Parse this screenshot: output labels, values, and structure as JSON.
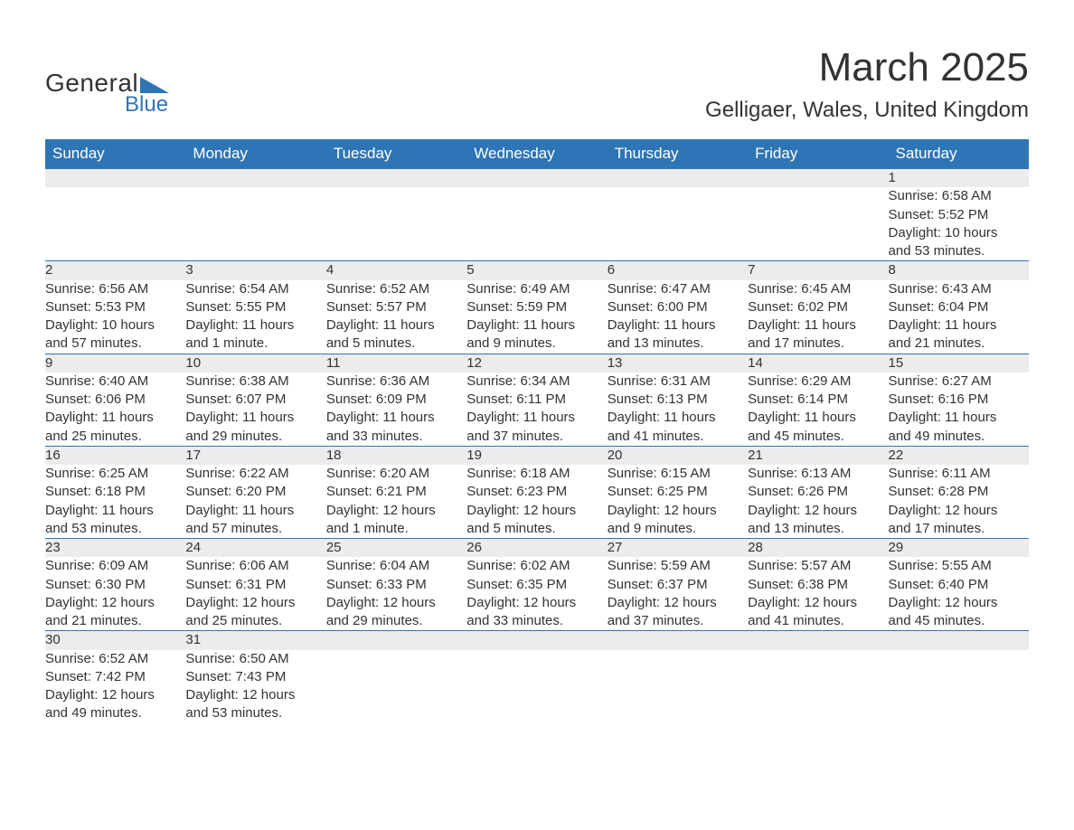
{
  "logo": {
    "brand_top": "General",
    "brand_bottom": "Blue",
    "triangle_color": "#2e75b6"
  },
  "title": {
    "month": "March 2025",
    "location": "Gelligaer, Wales, United Kingdom"
  },
  "colors": {
    "header_bg": "#2e75b6",
    "header_text": "#ffffff",
    "daynum_bg": "#ececec",
    "row_border": "#2e75b6",
    "text": "#333333",
    "background": "#ffffff"
  },
  "typography": {
    "month_fontsize": 44,
    "location_fontsize": 24,
    "header_fontsize": 17,
    "daynum_fontsize": 17,
    "body_fontsize": 15
  },
  "weekdays": [
    "Sunday",
    "Monday",
    "Tuesday",
    "Wednesday",
    "Thursday",
    "Friday",
    "Saturday"
  ],
  "weeks": [
    [
      null,
      null,
      null,
      null,
      null,
      null,
      {
        "day": "1",
        "sunrise": "Sunrise: 6:58 AM",
        "sunset": "Sunset: 5:52 PM",
        "daylight1": "Daylight: 10 hours",
        "daylight2": "and 53 minutes."
      }
    ],
    [
      {
        "day": "2",
        "sunrise": "Sunrise: 6:56 AM",
        "sunset": "Sunset: 5:53 PM",
        "daylight1": "Daylight: 10 hours",
        "daylight2": "and 57 minutes."
      },
      {
        "day": "3",
        "sunrise": "Sunrise: 6:54 AM",
        "sunset": "Sunset: 5:55 PM",
        "daylight1": "Daylight: 11 hours",
        "daylight2": "and 1 minute."
      },
      {
        "day": "4",
        "sunrise": "Sunrise: 6:52 AM",
        "sunset": "Sunset: 5:57 PM",
        "daylight1": "Daylight: 11 hours",
        "daylight2": "and 5 minutes."
      },
      {
        "day": "5",
        "sunrise": "Sunrise: 6:49 AM",
        "sunset": "Sunset: 5:59 PM",
        "daylight1": "Daylight: 11 hours",
        "daylight2": "and 9 minutes."
      },
      {
        "day": "6",
        "sunrise": "Sunrise: 6:47 AM",
        "sunset": "Sunset: 6:00 PM",
        "daylight1": "Daylight: 11 hours",
        "daylight2": "and 13 minutes."
      },
      {
        "day": "7",
        "sunrise": "Sunrise: 6:45 AM",
        "sunset": "Sunset: 6:02 PM",
        "daylight1": "Daylight: 11 hours",
        "daylight2": "and 17 minutes."
      },
      {
        "day": "8",
        "sunrise": "Sunrise: 6:43 AM",
        "sunset": "Sunset: 6:04 PM",
        "daylight1": "Daylight: 11 hours",
        "daylight2": "and 21 minutes."
      }
    ],
    [
      {
        "day": "9",
        "sunrise": "Sunrise: 6:40 AM",
        "sunset": "Sunset: 6:06 PM",
        "daylight1": "Daylight: 11 hours",
        "daylight2": "and 25 minutes."
      },
      {
        "day": "10",
        "sunrise": "Sunrise: 6:38 AM",
        "sunset": "Sunset: 6:07 PM",
        "daylight1": "Daylight: 11 hours",
        "daylight2": "and 29 minutes."
      },
      {
        "day": "11",
        "sunrise": "Sunrise: 6:36 AM",
        "sunset": "Sunset: 6:09 PM",
        "daylight1": "Daylight: 11 hours",
        "daylight2": "and 33 minutes."
      },
      {
        "day": "12",
        "sunrise": "Sunrise: 6:34 AM",
        "sunset": "Sunset: 6:11 PM",
        "daylight1": "Daylight: 11 hours",
        "daylight2": "and 37 minutes."
      },
      {
        "day": "13",
        "sunrise": "Sunrise: 6:31 AM",
        "sunset": "Sunset: 6:13 PM",
        "daylight1": "Daylight: 11 hours",
        "daylight2": "and 41 minutes."
      },
      {
        "day": "14",
        "sunrise": "Sunrise: 6:29 AM",
        "sunset": "Sunset: 6:14 PM",
        "daylight1": "Daylight: 11 hours",
        "daylight2": "and 45 minutes."
      },
      {
        "day": "15",
        "sunrise": "Sunrise: 6:27 AM",
        "sunset": "Sunset: 6:16 PM",
        "daylight1": "Daylight: 11 hours",
        "daylight2": "and 49 minutes."
      }
    ],
    [
      {
        "day": "16",
        "sunrise": "Sunrise: 6:25 AM",
        "sunset": "Sunset: 6:18 PM",
        "daylight1": "Daylight: 11 hours",
        "daylight2": "and 53 minutes."
      },
      {
        "day": "17",
        "sunrise": "Sunrise: 6:22 AM",
        "sunset": "Sunset: 6:20 PM",
        "daylight1": "Daylight: 11 hours",
        "daylight2": "and 57 minutes."
      },
      {
        "day": "18",
        "sunrise": "Sunrise: 6:20 AM",
        "sunset": "Sunset: 6:21 PM",
        "daylight1": "Daylight: 12 hours",
        "daylight2": "and 1 minute."
      },
      {
        "day": "19",
        "sunrise": "Sunrise: 6:18 AM",
        "sunset": "Sunset: 6:23 PM",
        "daylight1": "Daylight: 12 hours",
        "daylight2": "and 5 minutes."
      },
      {
        "day": "20",
        "sunrise": "Sunrise: 6:15 AM",
        "sunset": "Sunset: 6:25 PM",
        "daylight1": "Daylight: 12 hours",
        "daylight2": "and 9 minutes."
      },
      {
        "day": "21",
        "sunrise": "Sunrise: 6:13 AM",
        "sunset": "Sunset: 6:26 PM",
        "daylight1": "Daylight: 12 hours",
        "daylight2": "and 13 minutes."
      },
      {
        "day": "22",
        "sunrise": "Sunrise: 6:11 AM",
        "sunset": "Sunset: 6:28 PM",
        "daylight1": "Daylight: 12 hours",
        "daylight2": "and 17 minutes."
      }
    ],
    [
      {
        "day": "23",
        "sunrise": "Sunrise: 6:09 AM",
        "sunset": "Sunset: 6:30 PM",
        "daylight1": "Daylight: 12 hours",
        "daylight2": "and 21 minutes."
      },
      {
        "day": "24",
        "sunrise": "Sunrise: 6:06 AM",
        "sunset": "Sunset: 6:31 PM",
        "daylight1": "Daylight: 12 hours",
        "daylight2": "and 25 minutes."
      },
      {
        "day": "25",
        "sunrise": "Sunrise: 6:04 AM",
        "sunset": "Sunset: 6:33 PM",
        "daylight1": "Daylight: 12 hours",
        "daylight2": "and 29 minutes."
      },
      {
        "day": "26",
        "sunrise": "Sunrise: 6:02 AM",
        "sunset": "Sunset: 6:35 PM",
        "daylight1": "Daylight: 12 hours",
        "daylight2": "and 33 minutes."
      },
      {
        "day": "27",
        "sunrise": "Sunrise: 5:59 AM",
        "sunset": "Sunset: 6:37 PM",
        "daylight1": "Daylight: 12 hours",
        "daylight2": "and 37 minutes."
      },
      {
        "day": "28",
        "sunrise": "Sunrise: 5:57 AM",
        "sunset": "Sunset: 6:38 PM",
        "daylight1": "Daylight: 12 hours",
        "daylight2": "and 41 minutes."
      },
      {
        "day": "29",
        "sunrise": "Sunrise: 5:55 AM",
        "sunset": "Sunset: 6:40 PM",
        "daylight1": "Daylight: 12 hours",
        "daylight2": "and 45 minutes."
      }
    ],
    [
      {
        "day": "30",
        "sunrise": "Sunrise: 6:52 AM",
        "sunset": "Sunset: 7:42 PM",
        "daylight1": "Daylight: 12 hours",
        "daylight2": "and 49 minutes."
      },
      {
        "day": "31",
        "sunrise": "Sunrise: 6:50 AM",
        "sunset": "Sunset: 7:43 PM",
        "daylight1": "Daylight: 12 hours",
        "daylight2": "and 53 minutes."
      },
      null,
      null,
      null,
      null,
      null
    ]
  ]
}
